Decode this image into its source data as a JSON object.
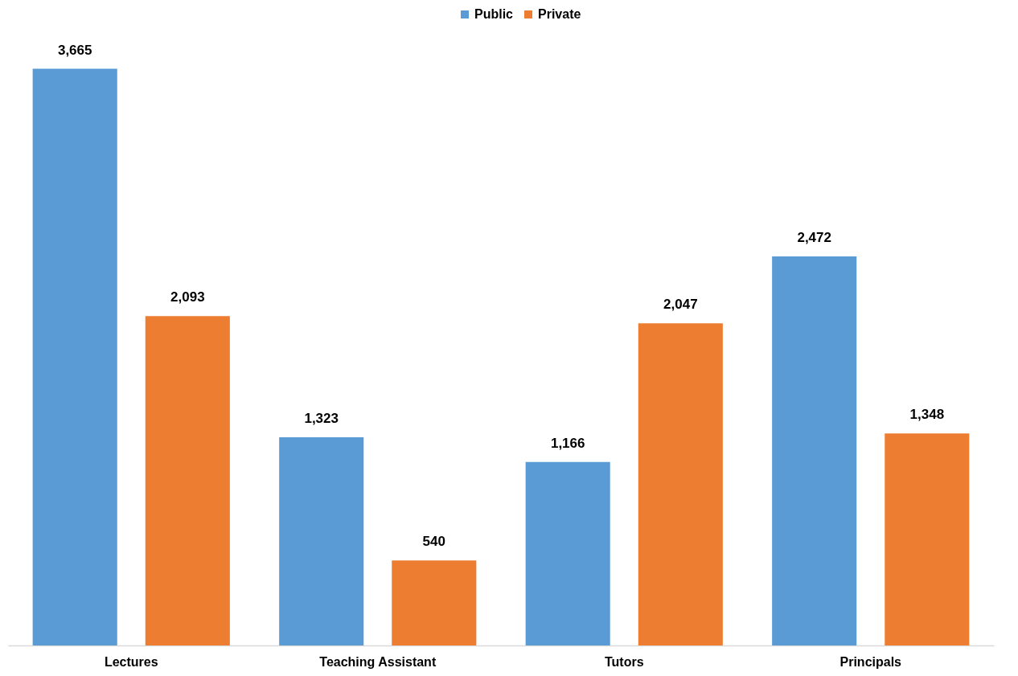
{
  "chart_data": {
    "type": "bar",
    "categories": [
      "Lectures",
      "Teaching Assistant",
      "Tutors",
      "Principals"
    ],
    "series": [
      {
        "name": "Public",
        "color": "#5b9bd5",
        "values": [
          3665,
          1323,
          1166,
          2472
        ],
        "value_labels": [
          "3,665",
          "1,323",
          "1,166",
          "2,472"
        ]
      },
      {
        "name": "Private",
        "color": "#ed7d31",
        "values": [
          2093,
          540,
          2047,
          1348
        ],
        "value_labels": [
          "2,093",
          "540",
          "2,047",
          "1,348"
        ]
      }
    ],
    "legend": "top",
    "grid": false
  }
}
